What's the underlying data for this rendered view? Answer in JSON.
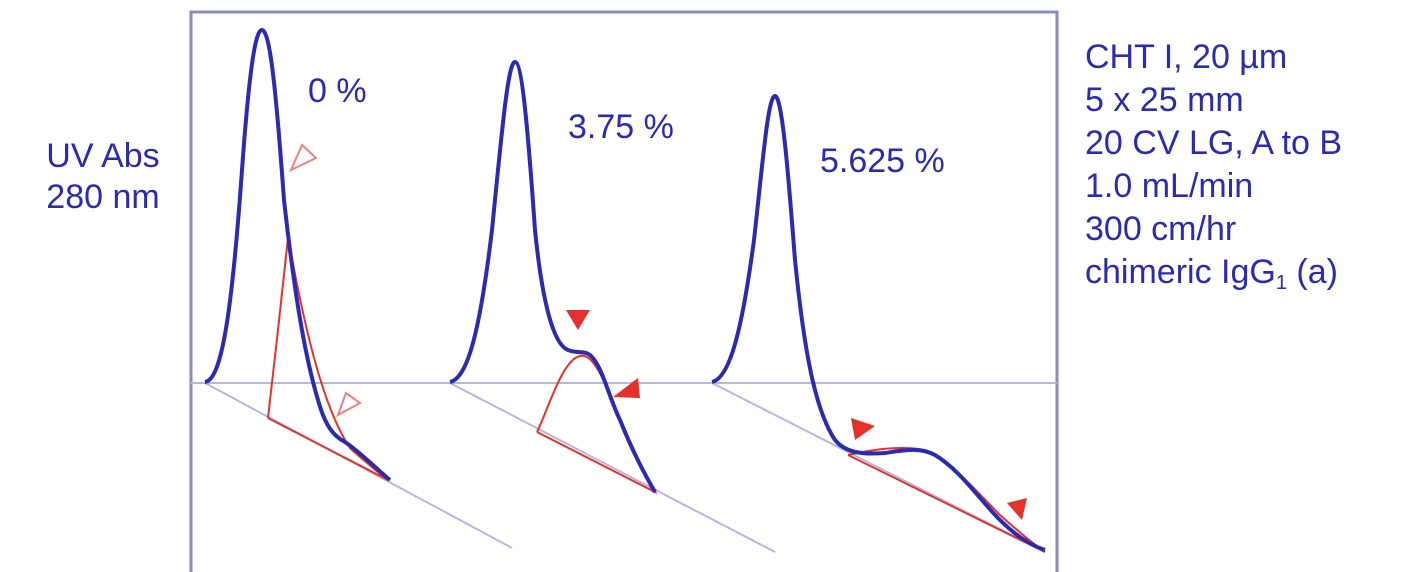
{
  "chart_data": {
    "type": "line",
    "ylabel_lines": [
      "UV Abs",
      "280 nm"
    ],
    "specs": [
      "CHT I, 20 µm",
      "5 x 25 mm",
      "20 CV LG, A to B",
      "1.0 mL/min",
      "300 cm/hr"
    ],
    "specs_last": {
      "text": "chimeric IgG",
      "sub": "1",
      "suffix": " (a)"
    },
    "series": [
      {
        "name": "0 %",
        "main_peak": 1.0,
        "shoulder": 0.4,
        "shoulder_filled": false
      },
      {
        "name": "3.75 %",
        "main_peak": 0.93,
        "shoulder": 0.3,
        "shoulder_filled": true
      },
      {
        "name": "5.625 %",
        "main_peak": 0.86,
        "shoulder": 0.16,
        "shoulder_filled": true
      }
    ],
    "colors": {
      "trace": "#2a2ab2",
      "shoulder": "#e8302a",
      "baseline": "#b4b8dc",
      "frame": "#8a8cbc"
    }
  }
}
